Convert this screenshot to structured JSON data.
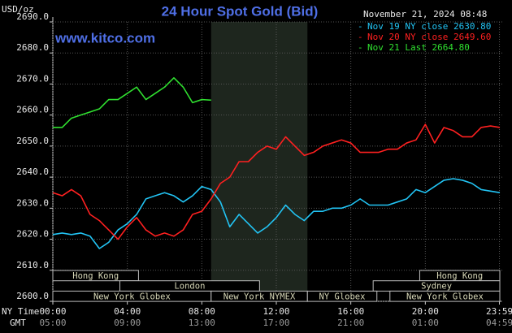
{
  "chart_data": {
    "type": "line",
    "title": "24 Hour Spot Gold (Bid)",
    "unit_label": "USD/oz",
    "website": "www.kitco.com",
    "timestamp": "November 21, 2024 08:48",
    "x_axis_labels": [
      "NY Time",
      "GMT"
    ],
    "x": [
      0,
      0.5,
      1,
      1.5,
      2,
      2.5,
      3,
      3.5,
      4,
      4.5,
      5,
      5.5,
      6,
      6.5,
      7,
      7.5,
      8,
      8.5,
      9,
      9.5,
      10,
      10.5,
      11,
      11.5,
      12,
      12.5,
      13,
      13.5,
      14,
      14.5,
      15,
      15.5,
      16,
      16.5,
      17,
      17.5,
      18,
      18.5,
      19,
      19.5,
      20,
      20.5,
      21,
      21.5,
      22,
      22.5,
      23,
      23.5,
      24
    ],
    "xlim": [
      0,
      24
    ],
    "xticks": [
      {
        "value": 0,
        "label": "00:00"
      },
      {
        "value": 4,
        "label": "04:00"
      },
      {
        "value": 8,
        "label": "08:00"
      },
      {
        "value": 12,
        "label": "12:00"
      },
      {
        "value": 16,
        "label": "16:00"
      },
      {
        "value": 20,
        "label": "20:00"
      },
      {
        "value": 23.98,
        "label": "23:59"
      }
    ],
    "gmt_tick_labels": [
      "05:00",
      "09:00",
      "13:00",
      "17:00",
      "21:00",
      "01:00",
      "04:59"
    ],
    "ylim": [
      2600,
      2690
    ],
    "yticks": [
      {
        "value": 2600,
        "label": "2600.0"
      },
      {
        "value": 2610,
        "label": "2610.0"
      },
      {
        "value": 2620,
        "label": "2620.0"
      },
      {
        "value": 2630,
        "label": "2630.0"
      },
      {
        "value": 2640,
        "label": "2640.0"
      },
      {
        "value": 2650,
        "label": "2650.0"
      },
      {
        "value": 2660,
        "label": "2660.0"
      },
      {
        "value": 2670,
        "label": "2670.0"
      },
      {
        "value": 2680,
        "label": "2680.0"
      },
      {
        "value": 2690,
        "label": "2690.0"
      }
    ],
    "grid": true,
    "legend": "top-right",
    "series": [
      {
        "name": "Nov 19 NY close 2630.80",
        "color": "#22c4f4",
        "values": [
          2621.5,
          2622,
          2621.5,
          2622,
          2621,
          2617,
          2619,
          2623,
          2625,
          2628,
          2633,
          2634,
          2635,
          2634,
          2632,
          2634,
          2637,
          2636,
          2632,
          2624,
          2628,
          2625,
          2622,
          2624,
          2627,
          2631,
          2628,
          2626,
          2629,
          2629,
          2630,
          2630,
          2631,
          2633,
          2631,
          2631,
          2631,
          2632,
          2633,
          2636,
          2635,
          2637,
          2639,
          2639.5,
          2639,
          2638,
          2636,
          2635.5,
          2635
        ]
      },
      {
        "name": "Nov 20 NY close 2649.60",
        "color": "#ff2020",
        "values": [
          2635,
          2634,
          2636,
          2634,
          2628,
          2626,
          2623,
          2620,
          2624,
          2627,
          2623,
          2621,
          2622,
          2621,
          2623,
          2628,
          2629,
          2633,
          2638,
          2640,
          2645,
          2645,
          2648,
          2650,
          2649,
          2653,
          2650,
          2647,
          2648,
          2650,
          2651,
          2652,
          2651,
          2648,
          2648,
          2648,
          2649,
          2649,
          2651,
          2652,
          2657,
          2651,
          2656,
          2655,
          2653,
          2653,
          2656,
          2656.5,
          2656
        ]
      },
      {
        "name": "Nov 21 Last 2664.80",
        "color": "#30e030",
        "values": [
          2656,
          2656,
          2659,
          2660,
          2661,
          2662,
          2665,
          2665,
          2667,
          2669,
          2665,
          2667,
          2669,
          2672,
          2669,
          2664,
          2665,
          2664.8,
          null,
          null,
          null,
          null,
          null,
          null,
          null,
          null,
          null,
          null,
          null,
          null,
          null,
          null,
          null,
          null,
          null,
          null,
          null,
          null,
          null,
          null,
          null,
          null,
          null,
          null,
          null,
          null,
          null,
          null,
          null
        ]
      }
    ],
    "sessions": [
      {
        "label": "Hong Kong",
        "start": 0,
        "end": 4.6,
        "row": 0
      },
      {
        "label": "Hong Kong",
        "start": 19.7,
        "end": 24,
        "row": 0
      },
      {
        "label": "London",
        "start": 3.6,
        "end": 11.1,
        "row": 1
      },
      {
        "label": "Sydney",
        "start": 17.2,
        "end": 24,
        "row": 1
      },
      {
        "label": "New York Globex",
        "start": 0,
        "end": 8.5,
        "row": 2
      },
      {
        "label": "New York NYMEX",
        "start": 8.5,
        "end": 13.67,
        "row": 2,
        "shaded": true
      },
      {
        "label": "NY Globex",
        "start": 13.67,
        "end": 17.4,
        "row": 2
      },
      {
        "label": "New York Globex",
        "start": 18.1,
        "end": 24,
        "row": 2
      }
    ]
  }
}
